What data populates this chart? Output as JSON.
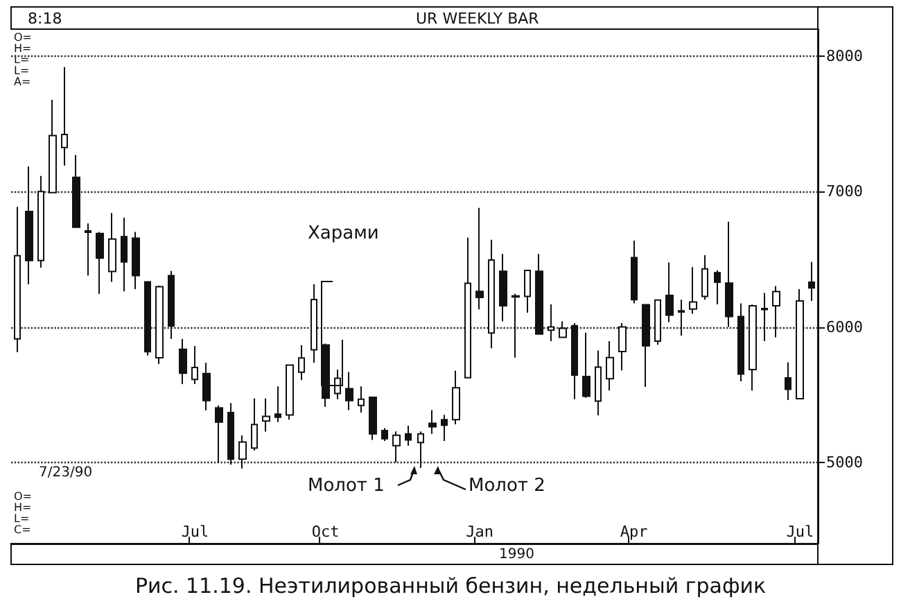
{
  "chart_data": {
    "type": "candlestick",
    "title": "Рис. 11.19. Неэтилированный бензин, недельный график",
    "categories": [
      null,
      null,
      null,
      null,
      null,
      null,
      null,
      null,
      null,
      null,
      null,
      null,
      null,
      null,
      null,
      "Jul",
      null,
      null,
      null,
      null,
      null,
      null,
      null,
      null,
      null,
      null,
      "Oct",
      null,
      null,
      null,
      null,
      null,
      null,
      null,
      null,
      null,
      null,
      null,
      null,
      "Jan",
      null,
      null,
      null,
      null,
      null,
      null,
      null,
      null,
      null,
      null,
      null,
      null,
      "Apr",
      null,
      null,
      null,
      null,
      null,
      null,
      null,
      null,
      null,
      null,
      null,
      null,
      null,
      "Jul",
      null
    ],
    "ohlc": [
      [
        5912,
        6888,
        5814,
        6526
      ],
      [
        6853,
        7186,
        6316,
        6491
      ],
      [
        6491,
        7116,
        6438,
        7000
      ],
      [
        6993,
        7677,
        6993,
        7414
      ],
      [
        7326,
        7920,
        7193,
        7421
      ],
      [
        7105,
        7270,
        6737,
        6737
      ],
      [
        6710,
        6765,
        6379,
        6700
      ],
      [
        6691,
        6702,
        6245,
        6509
      ],
      [
        6410,
        6842,
        6333,
        6649
      ],
      [
        6667,
        6807,
        6263,
        6481
      ],
      [
        6656,
        6702,
        6280,
        6379
      ],
      [
        6333,
        6333,
        5789,
        5817
      ],
      [
        5772,
        6305,
        5726,
        6298
      ],
      [
        6379,
        6414,
        5912,
        6007
      ],
      [
        5835,
        5912,
        5578,
        5659
      ],
      [
        5613,
        5859,
        5578,
        5701
      ],
      [
        5656,
        5736,
        5385,
        5456
      ],
      [
        5403,
        5420,
        5000,
        5298
      ],
      [
        5368,
        5438,
        4982,
        5024
      ],
      [
        5024,
        5199,
        4954,
        5150
      ],
      [
        5105,
        5473,
        5087,
        5280
      ],
      [
        5305,
        5473,
        5227,
        5340
      ],
      [
        5357,
        5561,
        5298,
        5333
      ],
      [
        5350,
        5719,
        5315,
        5719
      ],
      [
        5666,
        5866,
        5607,
        5771
      ],
      [
        5831,
        6316,
        5736,
        6203
      ],
      [
        5867,
        5877,
        5410,
        5474
      ],
      [
        5509,
        5684,
        5467,
        5621
      ],
      [
        5544,
        5667,
        5386,
        5456
      ],
      [
        5421,
        5561,
        5368,
        5467
      ],
      [
        5481,
        5481,
        5165,
        5210
      ],
      [
        5235,
        5253,
        5158,
        5175
      ],
      [
        5123,
        5228,
        5000,
        5200
      ],
      [
        5210,
        5270,
        5123,
        5165
      ],
      [
        5147,
        5228,
        4960,
        5210
      ],
      [
        5288,
        5386,
        5210,
        5263
      ],
      [
        5316,
        5351,
        5158,
        5274
      ],
      [
        5316,
        5677,
        5281,
        5551
      ],
      [
        5625,
        6660,
        5625,
        6323
      ],
      [
        6263,
        6880,
        6130,
        6218
      ],
      [
        5955,
        6645,
        5843,
        6495
      ],
      [
        6411,
        6540,
        6042,
        6157
      ],
      [
        6230,
        6245,
        5774,
        6222
      ],
      [
        6226,
        6418,
        6105,
        6418
      ],
      [
        6411,
        6540,
        5948,
        5948
      ],
      [
        5976,
        6167,
        5895,
        6000
      ],
      [
        5923,
        6042,
        5923,
        5990
      ],
      [
        6010,
        6028,
        5467,
        5645
      ],
      [
        5634,
        5958,
        5477,
        5488
      ],
      [
        5453,
        5826,
        5348,
        5704
      ],
      [
        5617,
        5895,
        5530,
        5774
      ],
      [
        5819,
        6028,
        5679,
        6000
      ],
      [
        6512,
        6638,
        6174,
        6202
      ],
      [
        6164,
        6167,
        5558,
        5861
      ],
      [
        5895,
        6202,
        5868,
        6199
      ],
      [
        6233,
        6477,
        6035,
        6087
      ],
      [
        6120,
        6202,
        5937,
        6110
      ],
      [
        6132,
        6442,
        6098,
        6185
      ],
      [
        6226,
        6530,
        6202,
        6429
      ],
      [
        6401,
        6418,
        6167,
        6331
      ],
      [
        6324,
        6777,
        6000,
        6077
      ],
      [
        6077,
        6174,
        5599,
        5652
      ],
      [
        5686,
        6165,
        5530,
        6157
      ],
      [
        6136,
        6251,
        5895,
        6128
      ],
      [
        6157,
        6303,
        5923,
        6261
      ],
      [
        5624,
        5739,
        5460,
        5540
      ],
      [
        5470,
        6279,
        5470,
        6192
      ],
      [
        6331,
        6481,
        6192,
        6289
      ]
    ],
    "ylim": [
      4400,
      8200
    ],
    "yticks": [
      5000,
      6000,
      7000,
      8000
    ],
    "grid": "y",
    "annotations": [
      "8:18",
      "UR WEEKLY BAR",
      "O=\nH=\nL=\nL=\nA=",
      "Харами",
      "Молот 1",
      "Молот 2",
      "7/23/90",
      "O=\nH=\nL=\nC=",
      "1990"
    ]
  }
}
